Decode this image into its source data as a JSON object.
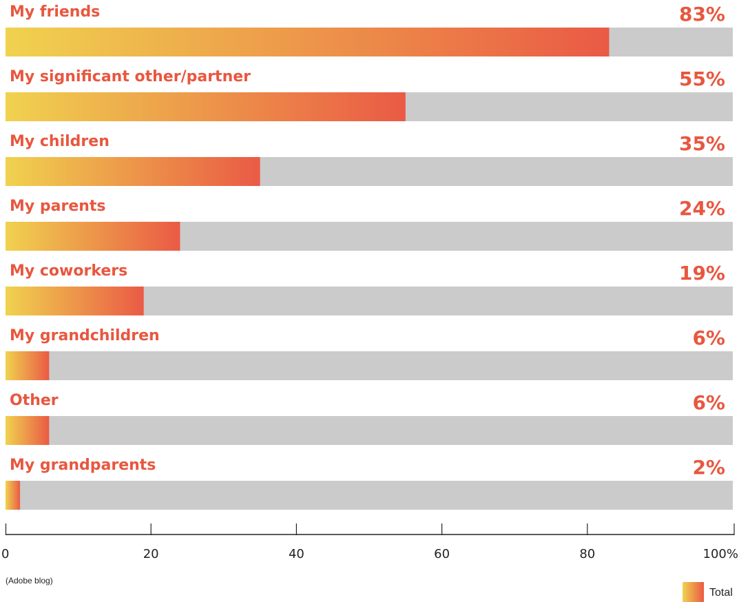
{
  "chart_data": {
    "type": "bar",
    "orientation": "horizontal",
    "categories": [
      "My friends",
      "My significant other/partner",
      "My children",
      "My parents",
      "My coworkers",
      "My grandchildren",
      "Other",
      "My grandparents"
    ],
    "values": [
      83,
      55,
      35,
      24,
      19,
      6,
      6,
      2
    ],
    "value_labels": [
      "83%",
      "55%",
      "35%",
      "24%",
      "19%",
      "6%",
      "6%",
      "2%"
    ],
    "series": [
      {
        "name": "Total",
        "values": [
          83,
          55,
          35,
          24,
          19,
          6,
          6,
          2
        ]
      }
    ],
    "xlim": [
      0,
      100
    ],
    "x_ticks": [
      0,
      20,
      40,
      60,
      80,
      100
    ],
    "x_tick_labels": [
      "0",
      "20",
      "40",
      "60",
      "80",
      "100%"
    ],
    "legend_position": "bottom-right",
    "grid": false
  },
  "source_note": "(Adobe blog)",
  "colors": {
    "label": "#e8573f",
    "track": "#cbcbcb",
    "gradient_start": "#f0d24f",
    "gradient_end": "#ea5a45",
    "axis": "#222222"
  }
}
